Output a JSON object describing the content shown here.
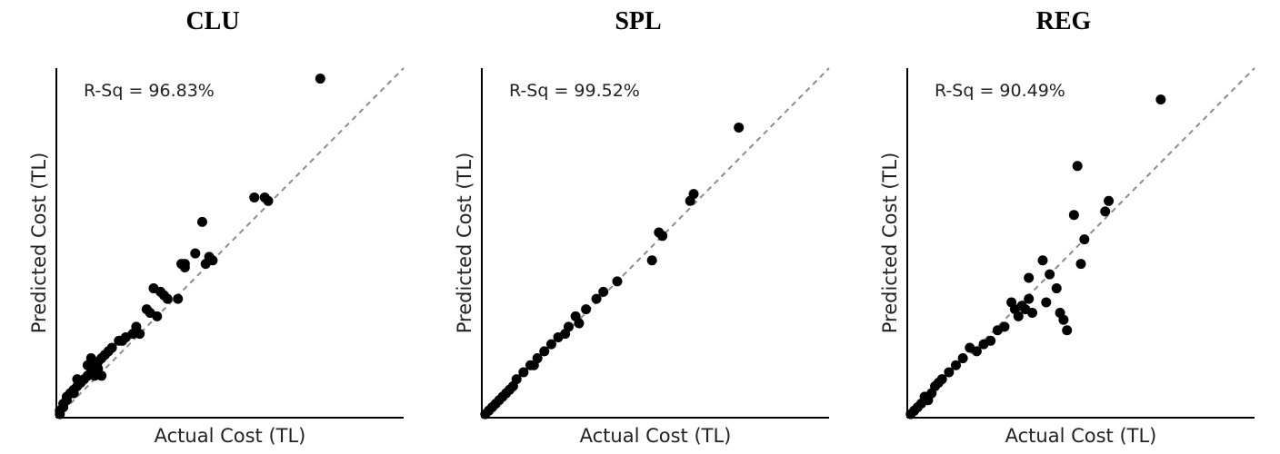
{
  "chart_data": [
    {
      "type": "scatter",
      "title": "CLU",
      "xlabel": "Actual Cost (TL)",
      "ylabel": "Predicted Cost (TL)",
      "annotation": "R-Sq = 96.83%",
      "reference_line": "y = x (dashed)",
      "xlim": [
        0,
        100
      ],
      "ylim": [
        0,
        100
      ],
      "points": [
        [
          76,
          97
        ],
        [
          60,
          63
        ],
        [
          61,
          62
        ],
        [
          57,
          63
        ],
        [
          42,
          56
        ],
        [
          40,
          47
        ],
        [
          43,
          44
        ],
        [
          44,
          46
        ],
        [
          45,
          45
        ],
        [
          37,
          44
        ],
        [
          37,
          43
        ],
        [
          36,
          44
        ],
        [
          28,
          37
        ],
        [
          32,
          34
        ],
        [
          35,
          34
        ],
        [
          31,
          35
        ],
        [
          30,
          36
        ],
        [
          26,
          31
        ],
        [
          27,
          30
        ],
        [
          29,
          29
        ],
        [
          23,
          26
        ],
        [
          24,
          24
        ],
        [
          22,
          24
        ],
        [
          20,
          23
        ],
        [
          19,
          22
        ],
        [
          18,
          22
        ],
        [
          16,
          20
        ],
        [
          15,
          19
        ],
        [
          14,
          18
        ],
        [
          13,
          17
        ],
        [
          12,
          16
        ],
        [
          12,
          14
        ],
        [
          11,
          15
        ],
        [
          10,
          13
        ],
        [
          9,
          15
        ],
        [
          9,
          12
        ],
        [
          8,
          11
        ],
        [
          7,
          10
        ],
        [
          6,
          11
        ],
        [
          6,
          9
        ],
        [
          5,
          8
        ],
        [
          5,
          7
        ],
        [
          4,
          7
        ],
        [
          3,
          6
        ],
        [
          3,
          5
        ],
        [
          2,
          4
        ],
        [
          2,
          3
        ],
        [
          1,
          2
        ],
        [
          1,
          1
        ],
        [
          10,
          17
        ],
        [
          11,
          12
        ],
        [
          13,
          12
        ]
      ]
    },
    {
      "type": "scatter",
      "title": "SPL",
      "xlabel": "Actual Cost (TL)",
      "ylabel": "Predicted Cost (TL)",
      "annotation": "R-Sq = 99.52%",
      "reference_line": "y = x (dashed)",
      "xlim": [
        0,
        100
      ],
      "ylim": [
        0,
        100
      ],
      "points": [
        [
          74,
          83
        ],
        [
          61,
          64
        ],
        [
          60,
          62
        ],
        [
          52,
          52
        ],
        [
          51,
          53
        ],
        [
          49,
          45
        ],
        [
          39,
          39
        ],
        [
          35,
          36
        ],
        [
          33,
          34
        ],
        [
          30,
          31
        ],
        [
          27,
          29
        ],
        [
          25,
          26
        ],
        [
          22,
          23
        ],
        [
          20,
          21
        ],
        [
          18,
          19
        ],
        [
          16,
          17
        ],
        [
          14,
          15
        ],
        [
          12,
          13
        ],
        [
          10,
          11
        ],
        [
          9,
          9
        ],
        [
          8,
          8
        ],
        [
          7,
          7
        ],
        [
          6,
          6
        ],
        [
          5,
          5
        ],
        [
          4,
          4
        ],
        [
          3,
          3
        ],
        [
          2,
          2
        ],
        [
          1,
          1
        ],
        [
          28,
          27
        ],
        [
          24,
          24
        ],
        [
          15,
          15
        ]
      ]
    },
    {
      "type": "scatter",
      "title": "REG",
      "xlabel": "Actual Cost (TL)",
      "ylabel": "Predicted Cost (TL)",
      "annotation": "R-Sq = 90.49%",
      "reference_line": "y = x (dashed)",
      "xlim": [
        0,
        100
      ],
      "ylim": [
        0,
        100
      ],
      "points": [
        [
          73,
          91
        ],
        [
          58,
          62
        ],
        [
          57,
          59
        ],
        [
          49,
          72
        ],
        [
          48,
          58
        ],
        [
          51,
          51
        ],
        [
          50,
          44
        ],
        [
          43,
          37
        ],
        [
          41,
          41
        ],
        [
          40,
          33
        ],
        [
          39,
          45
        ],
        [
          35,
          40
        ],
        [
          35,
          34
        ],
        [
          33,
          32
        ],
        [
          34,
          31
        ],
        [
          36,
          30
        ],
        [
          31,
          31
        ],
        [
          32,
          29
        ],
        [
          30,
          33
        ],
        [
          28,
          26
        ],
        [
          26,
          25
        ],
        [
          24,
          22
        ],
        [
          22,
          21
        ],
        [
          20,
          19
        ],
        [
          18,
          20
        ],
        [
          16,
          17
        ],
        [
          14,
          15
        ],
        [
          12,
          13
        ],
        [
          10,
          11
        ],
        [
          9,
          10
        ],
        [
          8,
          9
        ],
        [
          7,
          7
        ],
        [
          6,
          5
        ],
        [
          5,
          6
        ],
        [
          4,
          4
        ],
        [
          3,
          3
        ],
        [
          2,
          2
        ],
        [
          1,
          1
        ],
        [
          45,
          28
        ],
        [
          44,
          30
        ],
        [
          46,
          25
        ]
      ]
    }
  ]
}
